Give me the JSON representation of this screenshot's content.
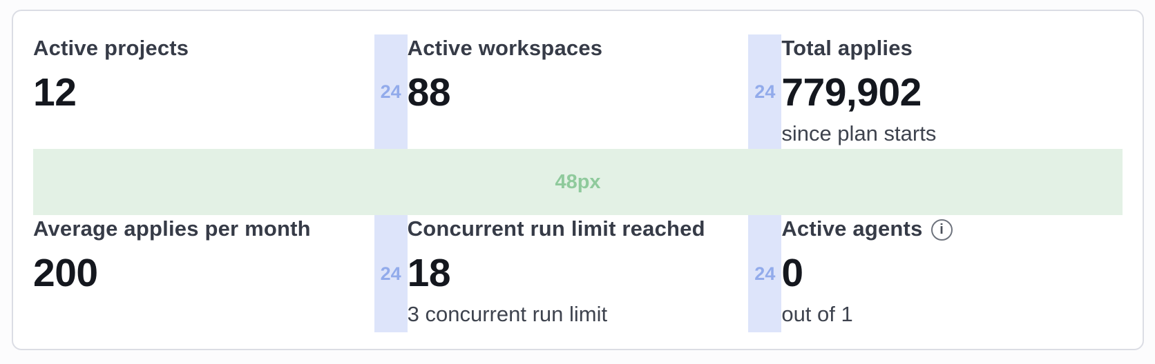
{
  "stats": [
    {
      "label": "Active projects",
      "value": "12",
      "subtitle": ""
    },
    {
      "label": "Active workspaces",
      "value": "88",
      "subtitle": ""
    },
    {
      "label": "Total applies",
      "value": "779,902",
      "subtitle": "since plan starts"
    },
    {
      "label": "Average applies per month",
      "value": "200",
      "subtitle": ""
    },
    {
      "label": "Concurrent run limit reached",
      "value": "18",
      "subtitle": "3 concurrent run limit"
    },
    {
      "label": "Active agents",
      "value": "0",
      "subtitle": "out of 1"
    }
  ],
  "icons": {
    "info_glyph": "i"
  },
  "annotations": {
    "column_gap_label": "24",
    "row_gap_label": "48px",
    "column_gap_color": "#dde4fa",
    "column_gap_text_color": "#92abeb",
    "row_gap_color": "#e3f1e5",
    "row_gap_text_color": "#8fca9c"
  },
  "colors": {
    "card_background": "#ffffff",
    "card_border": "#dbdde4",
    "label_text": "#363b47",
    "value_text": "#14171e",
    "subtitle_text": "#3e434e"
  }
}
